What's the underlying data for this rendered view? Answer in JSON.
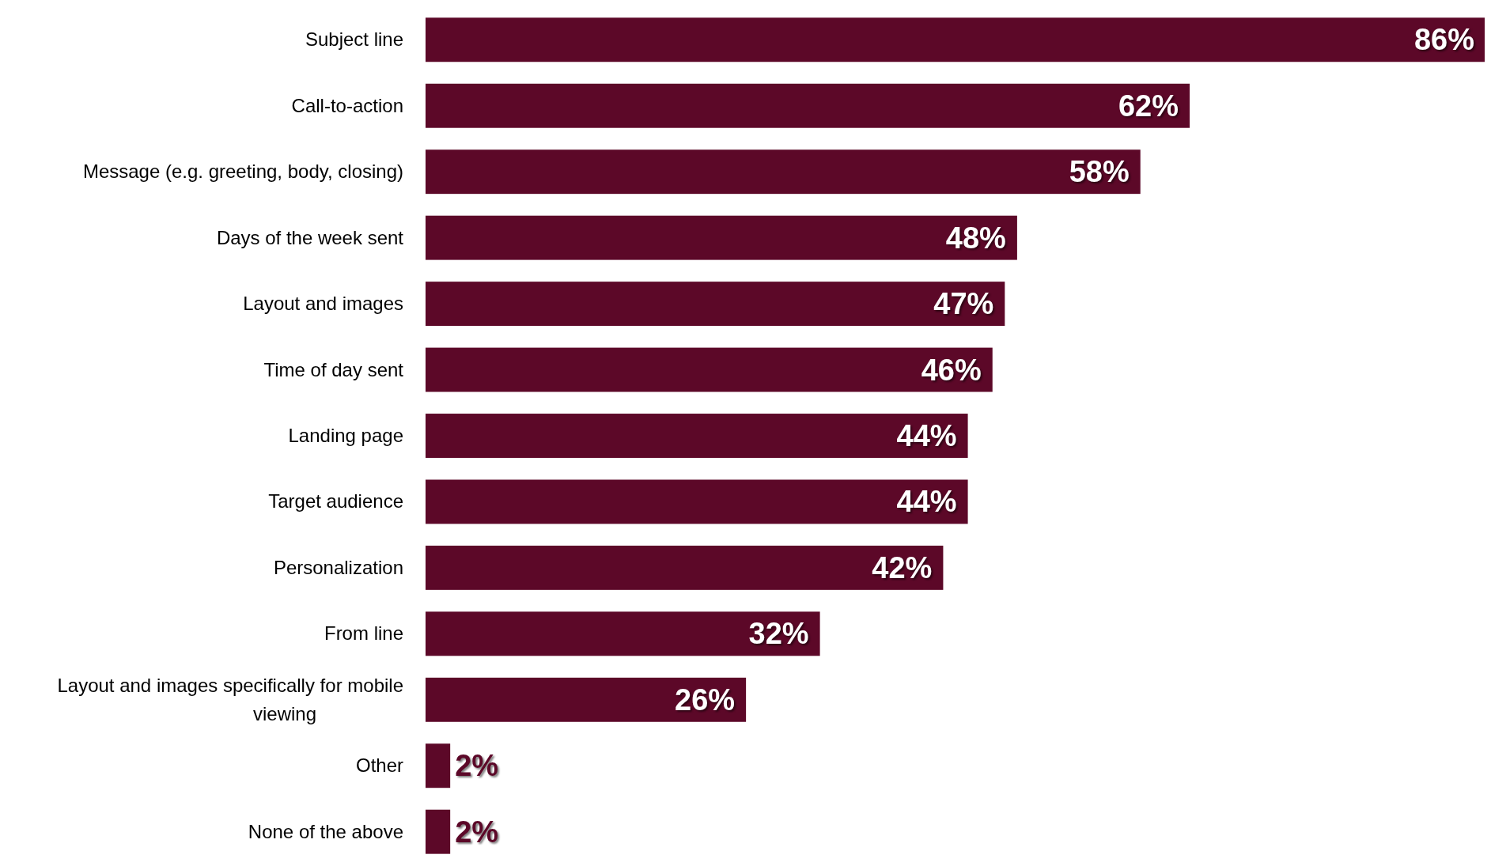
{
  "chart_data": {
    "type": "bar",
    "orientation": "horizontal",
    "categories": [
      "Subject line",
      "Call-to-action",
      "Message (e.g. greeting, body, closing)",
      "Days of the week sent",
      "Layout and images",
      "Time of day sent",
      "Landing page",
      "Target audience",
      "Personalization",
      "From line",
      "Layout and images specifically for mobile viewing",
      "Other",
      "None of the above"
    ],
    "values": [
      86,
      62,
      58,
      48,
      47,
      46,
      44,
      44,
      42,
      32,
      26,
      2,
      2
    ],
    "value_labels": [
      "86%",
      "62%",
      "58%",
      "48%",
      "47%",
      "46%",
      "44%",
      "44%",
      "42%",
      "32%",
      "26%",
      "2%",
      "2%"
    ],
    "color": "#5c0828",
    "xlim": [
      0,
      86
    ]
  }
}
